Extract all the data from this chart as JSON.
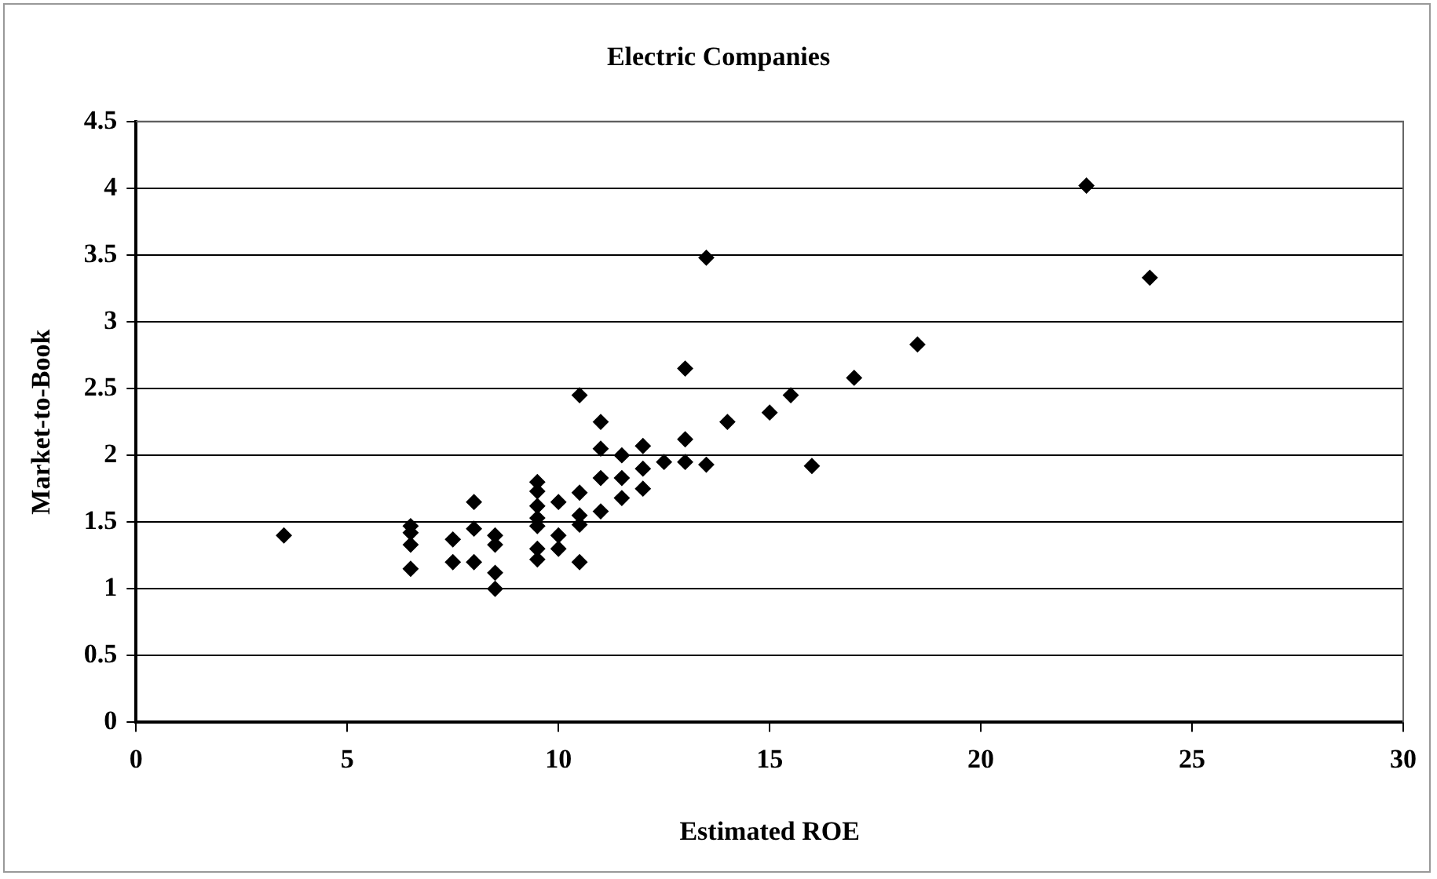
{
  "chart_data": {
    "type": "scatter",
    "title": "Electric Companies",
    "xlabel": "Estimated ROE",
    "ylabel": "Market-to-Book",
    "x": [
      3.5,
      6.5,
      6.5,
      6.5,
      6.5,
      7.5,
      7.5,
      8,
      8,
      8,
      8.5,
      8.5,
      8.5,
      8.5,
      9.5,
      9.5,
      9.5,
      9.5,
      9.5,
      9.5,
      9.5,
      10,
      10,
      10,
      10.5,
      10.5,
      10.5,
      10.5,
      10.5,
      11,
      11,
      11,
      11,
      11.5,
      11.5,
      11.5,
      12,
      12,
      12,
      12.5,
      13,
      13,
      13,
      13.5,
      13.5,
      14,
      15,
      15.5,
      16,
      17,
      18.5,
      22.5,
      24
    ],
    "series": [
      {
        "color": "#000000",
        "values": [
          1.4,
          1.47,
          1.42,
          1.33,
          1.15,
          1.37,
          1.2,
          1.65,
          1.45,
          1.2,
          1.4,
          1.33,
          1.12,
          1.0,
          1.8,
          1.73,
          1.62,
          1.53,
          1.47,
          1.3,
          1.22,
          1.65,
          1.4,
          1.3,
          2.45,
          1.72,
          1.55,
          1.48,
          1.2,
          2.25,
          2.05,
          1.83,
          1.58,
          2.0,
          1.83,
          1.68,
          2.07,
          1.9,
          1.75,
          1.95,
          2.65,
          2.12,
          1.95,
          3.48,
          1.93,
          2.25,
          2.32,
          2.45,
          1.92,
          2.58,
          2.83,
          4.02,
          3.33
        ]
      }
    ],
    "xlim": [
      0,
      30
    ],
    "xticks": [
      0,
      5,
      10,
      15,
      20,
      25,
      30
    ],
    "ylim": [
      0,
      4.5
    ],
    "yticks": [
      0,
      0.5,
      1,
      1.5,
      2,
      2.5,
      3,
      3.5,
      4,
      4.5
    ],
    "grid": "y",
    "legend": false,
    "marker": "diamond"
  }
}
